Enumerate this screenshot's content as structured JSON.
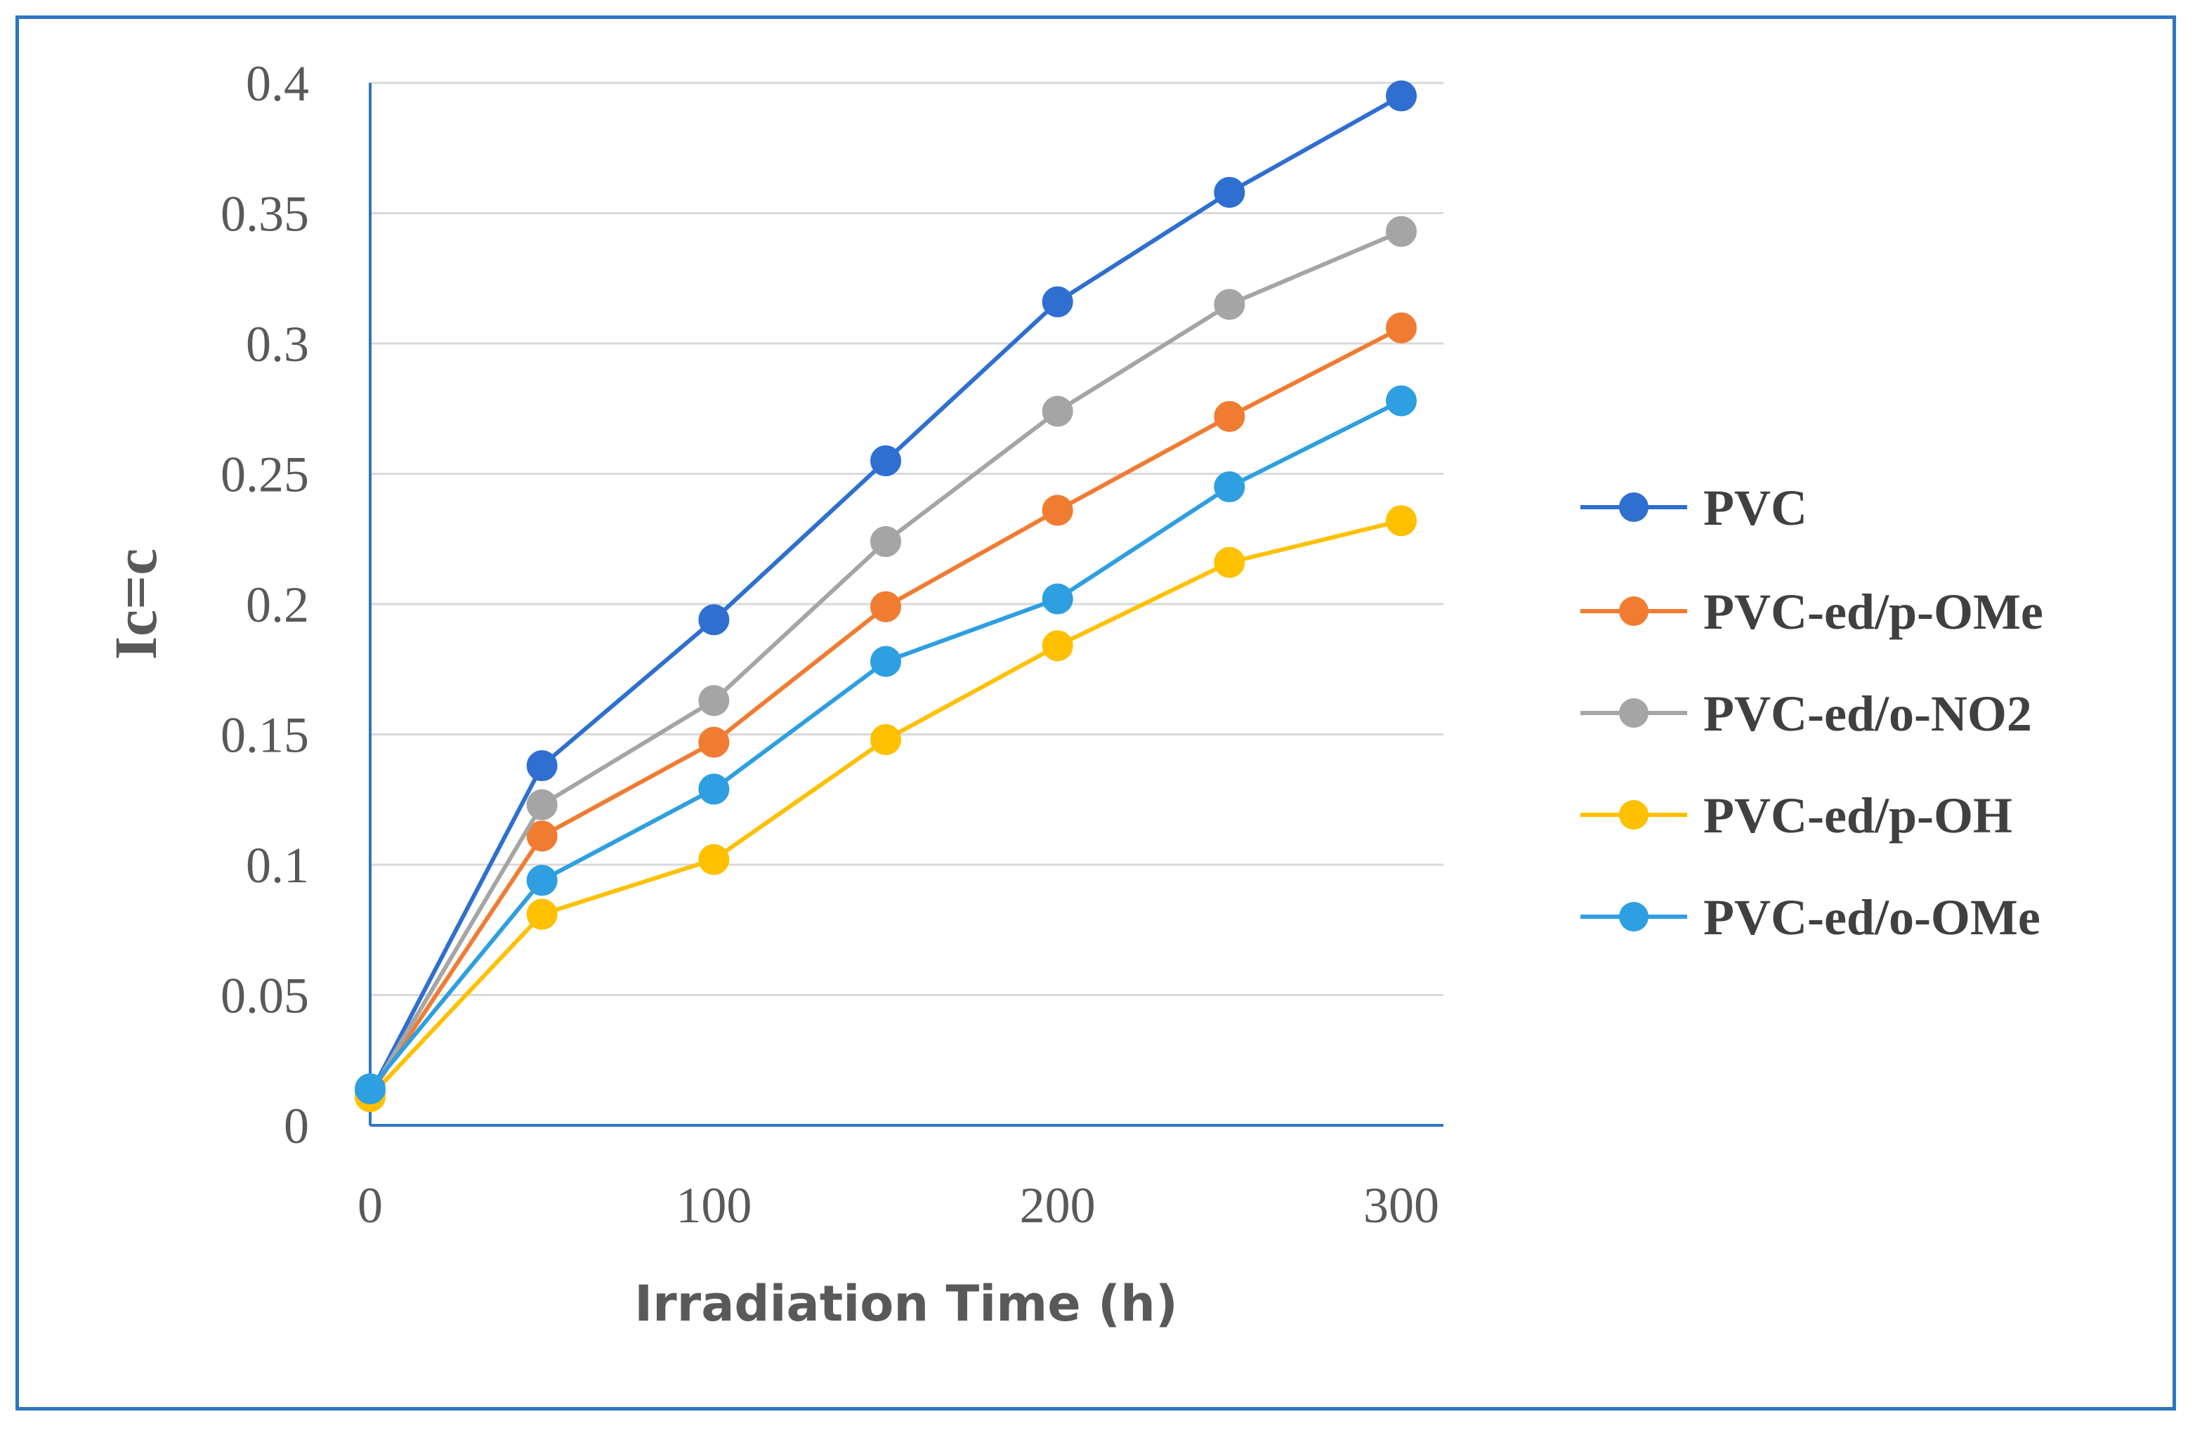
{
  "chart_data": {
    "type": "line",
    "title": "",
    "xlabel": "Irradiation Time (h)",
    "ylabel": "Ic=c",
    "x": [
      0,
      50,
      100,
      150,
      200,
      250,
      300
    ],
    "xlim": [
      0,
      300
    ],
    "ylim": [
      0,
      0.4
    ],
    "x_ticks": [
      "0",
      "100",
      "200",
      "300"
    ],
    "y_ticks": [
      "0",
      "0.05",
      "0.1",
      "0.15",
      "0.2",
      "0.25",
      "0.3",
      "0.35",
      "0.4"
    ],
    "grid": true,
    "legend_position": "right",
    "series": [
      {
        "name": "PVC",
        "color": "#2e6fd0",
        "values": [
          0.012,
          0.138,
          0.194,
          0.255,
          0.316,
          0.358,
          0.395
        ]
      },
      {
        "name": "PVC-ed/p-OMe",
        "color": "#f07c32",
        "values": [
          0.012,
          0.111,
          0.147,
          0.199,
          0.236,
          0.272,
          0.306
        ]
      },
      {
        "name": "PVC-ed/o-NO2",
        "color": "#a5a5a5",
        "values": [
          0.012,
          0.123,
          0.163,
          0.224,
          0.274,
          0.315,
          0.343
        ]
      },
      {
        "name": "PVC-ed/p-OH",
        "color": "#ffc000",
        "values": [
          0.011,
          0.081,
          0.102,
          0.148,
          0.184,
          0.216,
          0.232
        ]
      },
      {
        "name": "PVC-ed/o-OMe",
        "color": "#2e9fe0",
        "values": [
          0.014,
          0.094,
          0.129,
          0.178,
          0.202,
          0.245,
          0.278
        ]
      }
    ]
  }
}
